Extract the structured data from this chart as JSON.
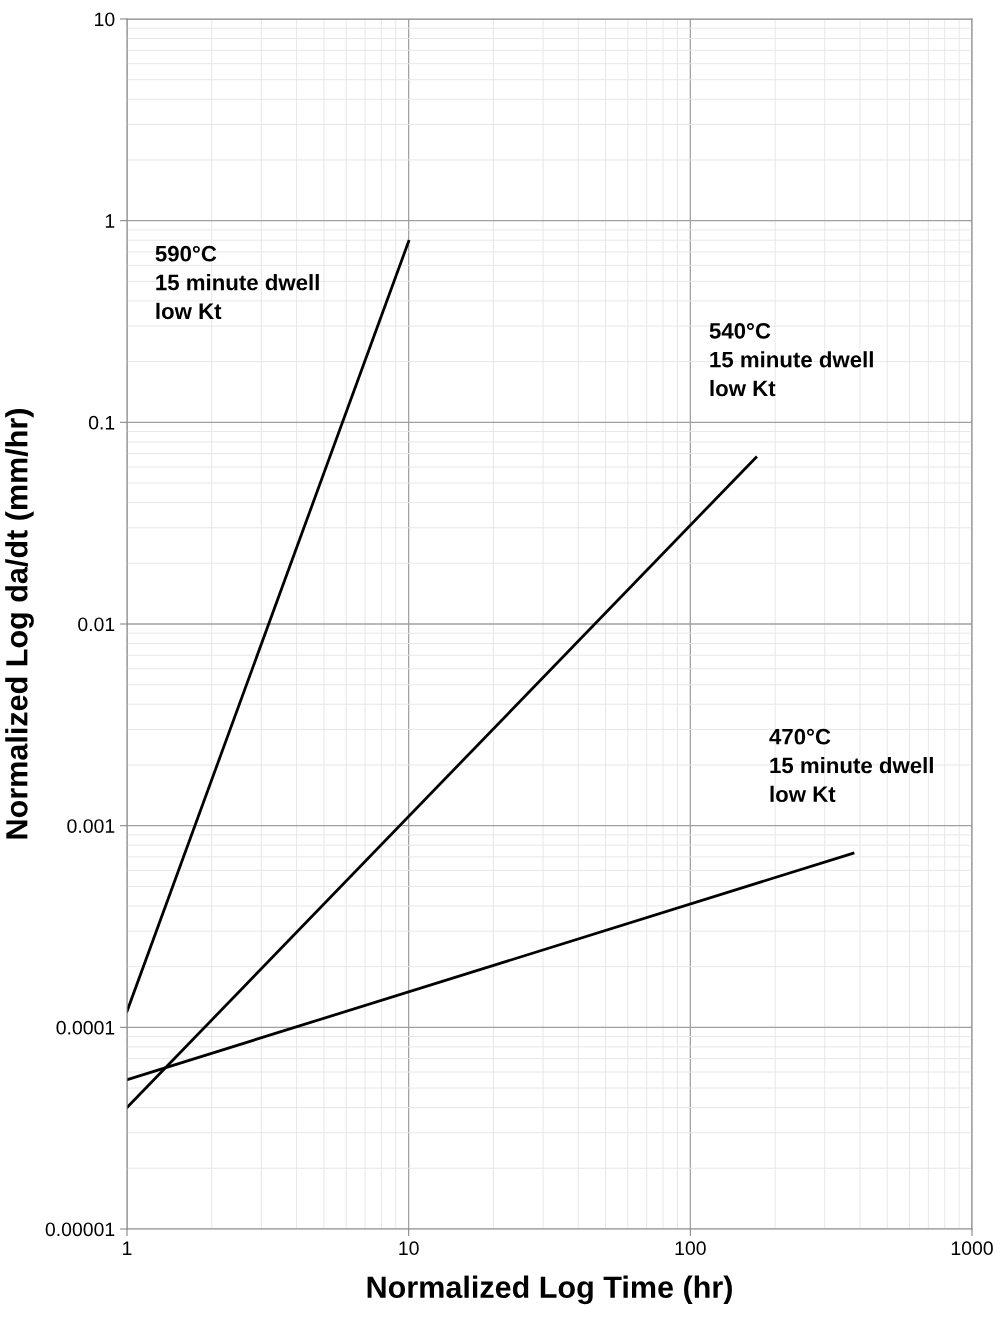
{
  "chart_data": {
    "type": "line",
    "xlabel": "Normalized Log Time (hr)",
    "ylabel": "Normalized Log da/dt (mm/hr)",
    "log": "xy",
    "grid": true,
    "marker": "none",
    "line_style": "solid",
    "xlim": [
      1,
      1000
    ],
    "xticks": [
      1,
      10,
      100,
      1000
    ],
    "ylim": [
      1e-05,
      10
    ],
    "yticks": [
      {
        "value": 1e-05,
        "label": "0.00001"
      },
      {
        "value": 0.0001,
        "label": "0.0001"
      },
      {
        "value": 0.001,
        "label": "0.001"
      },
      {
        "value": 0.01,
        "label": "0.01"
      },
      {
        "value": 0.1,
        "label": "0.1"
      },
      {
        "value": 1,
        "label": "1"
      },
      {
        "value": 10,
        "label": "10"
      }
    ],
    "annotations": [
      "590°C\n15 minute dwell\nlow Kt",
      {
        "text": "540°C\n15 minute dwell\nlow Kt",
        "x": 171,
        "y": 0.067
      },
      {
        "text": "470°C\n15 minute dwell\nlow Kt",
        "x": 378,
        "y": 0.00073
      }
    ],
    "series": [
      {
        "color": "#000000",
        "x": [
          1,
          10
        ],
        "values": [
          0.00012,
          0.79
        ]
      },
      {
        "color": "#000000",
        "x": [
          1,
          171
        ],
        "values": [
          4e-05,
          0.067
        ]
      },
      {
        "color": "#000000",
        "x": [
          1,
          378
        ],
        "values": [
          5.5e-05,
          0.00073
        ]
      }
    ]
  }
}
